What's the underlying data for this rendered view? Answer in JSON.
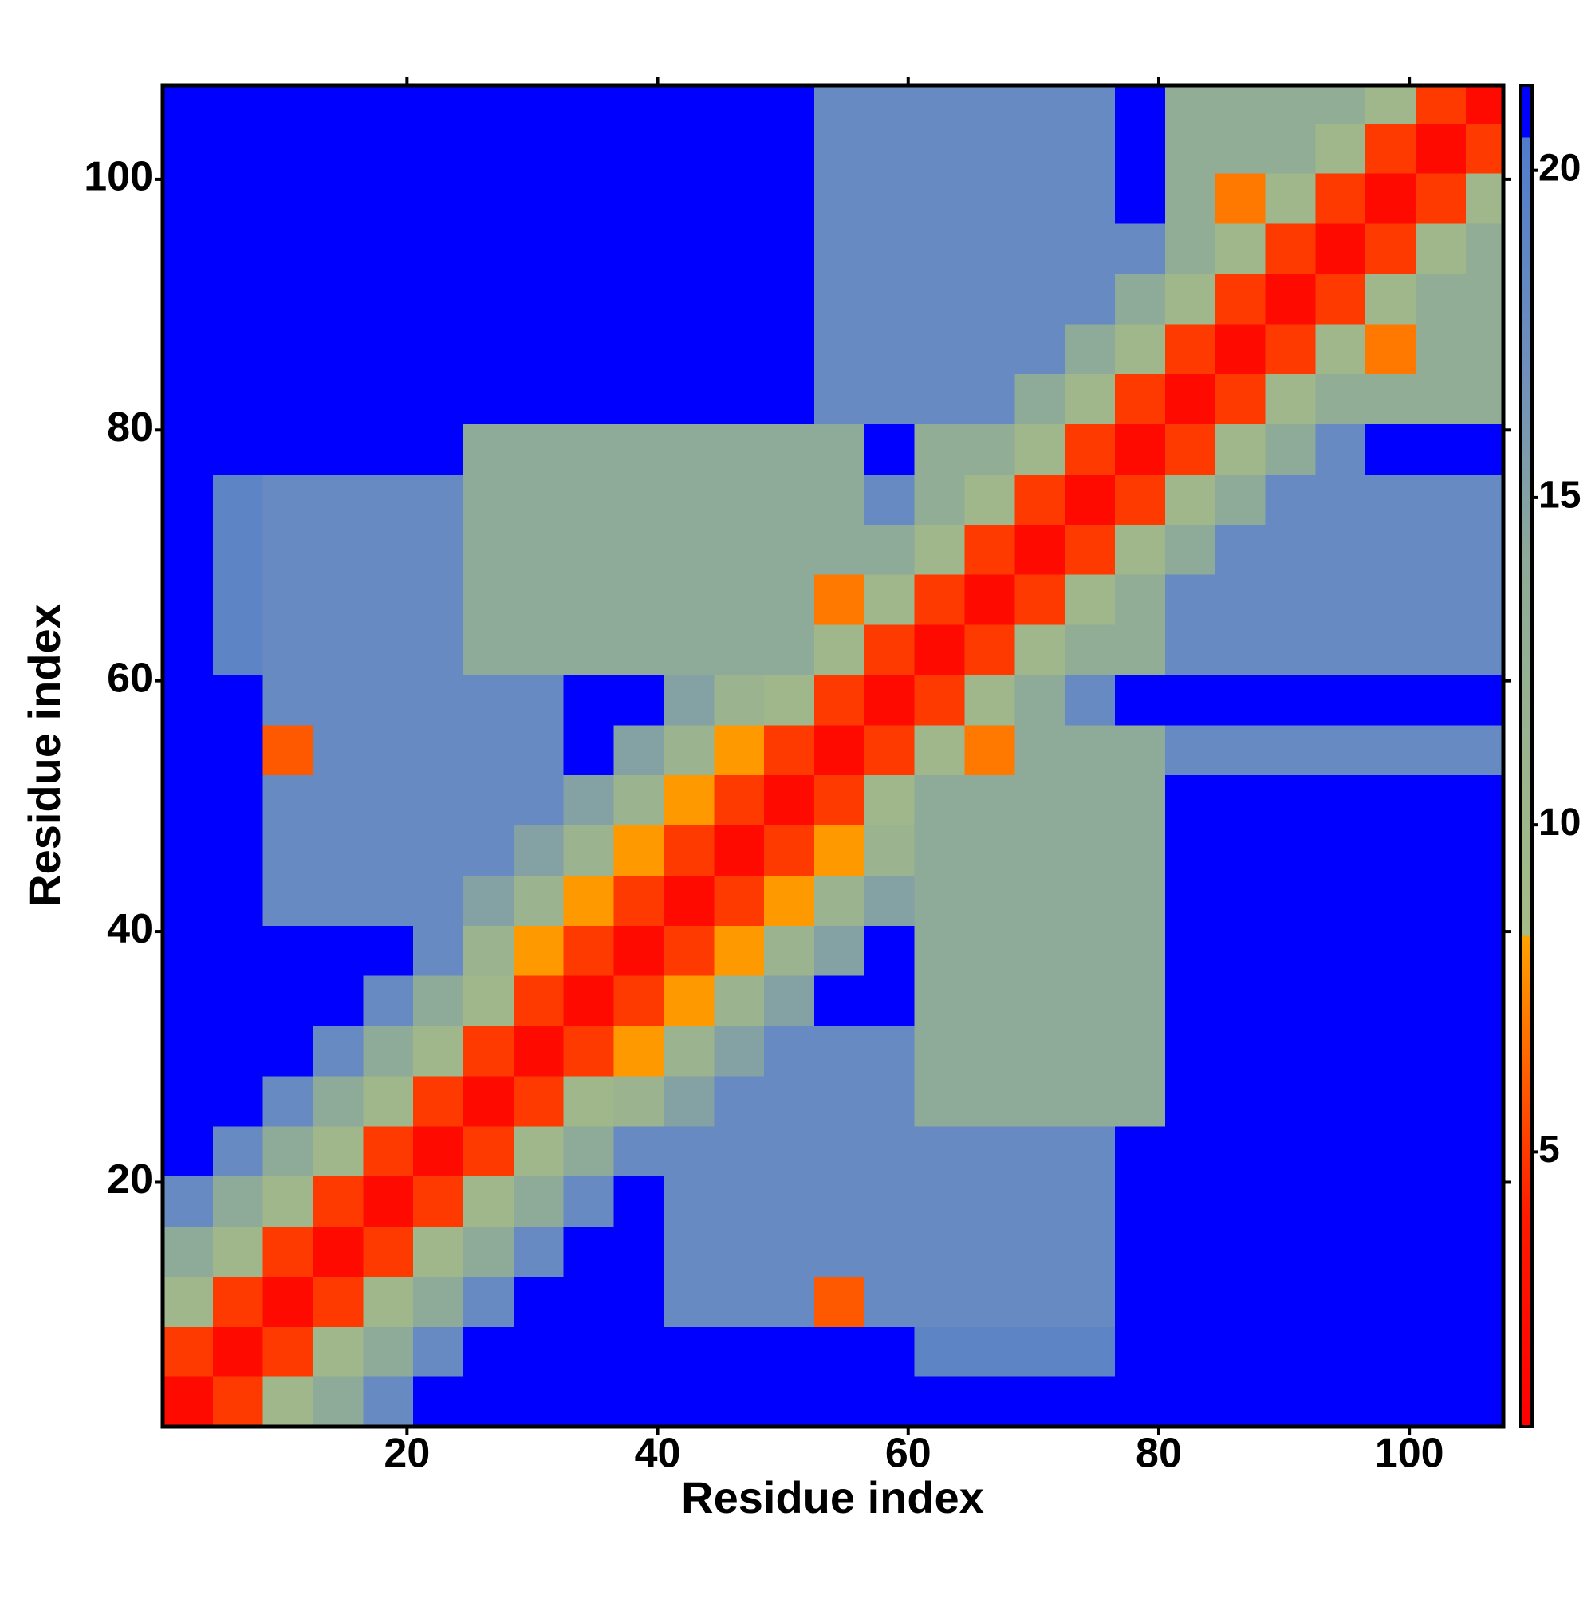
{
  "chart_data": {
    "type": "heatmap",
    "xlabel": "Residue index",
    "ylabel": "Residue index",
    "xlim": [
      0.5,
      107.5
    ],
    "ylim": [
      0.5,
      107.5
    ],
    "xticks": [
      20,
      40,
      60,
      80,
      100
    ],
    "yticks": [
      20,
      40,
      60,
      80,
      100
    ],
    "xbins": [
      0.5,
      4.5,
      8.5,
      12.5,
      16.5,
      20.5,
      24.5,
      28.5,
      32.5,
      36.5,
      40.5,
      44.5,
      48.5,
      52.5,
      56.5,
      60.5,
      64.5,
      68.5,
      72.5,
      76.5,
      80.5,
      84.5,
      88.5,
      92.5,
      96.5,
      100.5,
      104.5,
      107.5
    ],
    "ybins": [
      0.5,
      4.5,
      8.5,
      12.5,
      16.5,
      20.5,
      24.5,
      28.5,
      32.5,
      36.5,
      40.5,
      44.5,
      48.5,
      52.5,
      56.5,
      60.5,
      64.5,
      68.5,
      72.5,
      76.5,
      80.5,
      84.5,
      88.5,
      92.5,
      96.5,
      100.5,
      104.5,
      107.5
    ],
    "z": [
      [
        2,
        5,
        10,
        14,
        18,
        21,
        21,
        21,
        21,
        21,
        21,
        21,
        21,
        21,
        21,
        21,
        21,
        21,
        21,
        21,
        21,
        21,
        21,
        21,
        21,
        21,
        21
      ],
      [
        5,
        2,
        5,
        10,
        14,
        18,
        21,
        21,
        21,
        21,
        21,
        21,
        21,
        21,
        21,
        19,
        19,
        19,
        19,
        21,
        21,
        21,
        21,
        21,
        21,
        21,
        21
      ],
      [
        10,
        5,
        2,
        5,
        10,
        14,
        18,
        21,
        21,
        21,
        18,
        18,
        18,
        6,
        18,
        18,
        18,
        18,
        18,
        21,
        21,
        21,
        21,
        21,
        21,
        21,
        21
      ],
      [
        14,
        10,
        5,
        2,
        5,
        10,
        14,
        18,
        21,
        21,
        18,
        18,
        18,
        18,
        18,
        18,
        18,
        18,
        18,
        21,
        21,
        21,
        21,
        21,
        21,
        21,
        21
      ],
      [
        18,
        14,
        10,
        5,
        2,
        5,
        10,
        14,
        18,
        21,
        18,
        18,
        18,
        18,
        18,
        18,
        18,
        18,
        18,
        21,
        21,
        21,
        21,
        21,
        21,
        21,
        21
      ],
      [
        21,
        18,
        14,
        10,
        5,
        2,
        5,
        10,
        14,
        18,
        18,
        18,
        18,
        18,
        18,
        18,
        18,
        18,
        18,
        21,
        21,
        21,
        21,
        21,
        21,
        21,
        21
      ],
      [
        21,
        21,
        18,
        14,
        10,
        5,
        2,
        5,
        10,
        11,
        15,
        18,
        18,
        18,
        18,
        14,
        14,
        14,
        14,
        14,
        21,
        21,
        21,
        21,
        21,
        21,
        21
      ],
      [
        21,
        21,
        21,
        18,
        14,
        10,
        5,
        2,
        5,
        8,
        11,
        15,
        18,
        18,
        18,
        14,
        14,
        14,
        14,
        14,
        21,
        21,
        21,
        21,
        21,
        21,
        21
      ],
      [
        21,
        21,
        21,
        21,
        18,
        14,
        10,
        5,
        2,
        5,
        8,
        11,
        15,
        21,
        21,
        14,
        14,
        14,
        14,
        14,
        21,
        21,
        21,
        21,
        21,
        21,
        21
      ],
      [
        21,
        21,
        21,
        21,
        21,
        18,
        11,
        8,
        5,
        2,
        5,
        8,
        11,
        15,
        21,
        14,
        14,
        14,
        14,
        14,
        21,
        21,
        21,
        21,
        21,
        21,
        21
      ],
      [
        21,
        21,
        18,
        18,
        18,
        18,
        15,
        11,
        8,
        5,
        2,
        5,
        8,
        11,
        15,
        14,
        14,
        14,
        14,
        14,
        21,
        21,
        21,
        21,
        21,
        21,
        21
      ],
      [
        21,
        21,
        18,
        18,
        18,
        18,
        18,
        15,
        11,
        8,
        5,
        2,
        5,
        8,
        11,
        14,
        14,
        14,
        14,
        14,
        21,
        21,
        21,
        21,
        21,
        21,
        21
      ],
      [
        21,
        21,
        18,
        18,
        18,
        18,
        18,
        18,
        15,
        11,
        8,
        5,
        2,
        5,
        10,
        14,
        14,
        14,
        14,
        14,
        21,
        21,
        21,
        21,
        21,
        21,
        21
      ],
      [
        21,
        21,
        6,
        18,
        18,
        18,
        18,
        18,
        21,
        15,
        11,
        8,
        5,
        2,
        5,
        10,
        7,
        14,
        14,
        14,
        18,
        18,
        18,
        18,
        18,
        18,
        18
      ],
      [
        21,
        21,
        18,
        18,
        18,
        18,
        18,
        18,
        21,
        21,
        15,
        11,
        10,
        5,
        2,
        5,
        10,
        14,
        18,
        21,
        21,
        21,
        21,
        21,
        21,
        21,
        21
      ],
      [
        21,
        19,
        18,
        18,
        18,
        18,
        14,
        14,
        14,
        14,
        14,
        14,
        14,
        10,
        5,
        2,
        5,
        10,
        13,
        13,
        18,
        18,
        18,
        18,
        18,
        18,
        18
      ],
      [
        21,
        19,
        18,
        18,
        18,
        18,
        14,
        14,
        14,
        14,
        14,
        14,
        14,
        7,
        10,
        5,
        2,
        5,
        10,
        13,
        18,
        18,
        18,
        18,
        18,
        18,
        18
      ],
      [
        21,
        19,
        18,
        18,
        18,
        18,
        14,
        14,
        14,
        14,
        14,
        14,
        14,
        14,
        14,
        10,
        5,
        2,
        5,
        10,
        14,
        18,
        18,
        18,
        18,
        18,
        18
      ],
      [
        21,
        19,
        18,
        18,
        18,
        18,
        14,
        14,
        14,
        14,
        14,
        14,
        14,
        14,
        18,
        13,
        10,
        5,
        2,
        5,
        10,
        14,
        18,
        18,
        18,
        18,
        18
      ],
      [
        21,
        21,
        21,
        21,
        21,
        21,
        14,
        14,
        14,
        14,
        14,
        14,
        14,
        14,
        21,
        13,
        13,
        10,
        5,
        2,
        5,
        10,
        14,
        18,
        21,
        21,
        21
      ],
      [
        21,
        21,
        21,
        21,
        21,
        21,
        21,
        21,
        21,
        21,
        21,
        21,
        21,
        18,
        18,
        18,
        18,
        14,
        10,
        5,
        2,
        5,
        10,
        13,
        13,
        13,
        13
      ],
      [
        21,
        21,
        21,
        21,
        21,
        21,
        21,
        21,
        21,
        21,
        21,
        21,
        21,
        18,
        18,
        18,
        18,
        18,
        14,
        10,
        5,
        2,
        5,
        10,
        7,
        13,
        13
      ],
      [
        21,
        21,
        21,
        21,
        21,
        21,
        21,
        21,
        21,
        21,
        21,
        21,
        21,
        18,
        18,
        18,
        18,
        18,
        18,
        14,
        10,
        5,
        2,
        5,
        10,
        13,
        13
      ],
      [
        21,
        21,
        21,
        21,
        21,
        21,
        21,
        21,
        21,
        21,
        21,
        21,
        21,
        18,
        18,
        18,
        18,
        18,
        18,
        18,
        13,
        10,
        5,
        2,
        5,
        10,
        13
      ],
      [
        21,
        21,
        21,
        21,
        21,
        21,
        21,
        21,
        21,
        21,
        21,
        21,
        21,
        18,
        18,
        18,
        18,
        18,
        18,
        21,
        13,
        7,
        10,
        5,
        2,
        5,
        10
      ],
      [
        21,
        21,
        21,
        21,
        21,
        21,
        21,
        21,
        21,
        21,
        21,
        21,
        21,
        18,
        18,
        18,
        18,
        18,
        18,
        21,
        13,
        13,
        13,
        10,
        5,
        2,
        5
      ],
      [
        21,
        21,
        21,
        21,
        21,
        21,
        21,
        21,
        21,
        21,
        21,
        21,
        21,
        18,
        18,
        18,
        18,
        18,
        18,
        21,
        13,
        13,
        13,
        13,
        10,
        5,
        2
      ]
    ],
    "colorscale": [
      {
        "value": 0.8,
        "color": "#ff0000"
      },
      {
        "value": 4,
        "color": "#ff1a00"
      },
      {
        "value": 8.3,
        "color": "#ffa200"
      },
      {
        "value": 8.3,
        "color": "#a6bc86"
      },
      {
        "value": 14,
        "color": "#8eaa98"
      },
      {
        "value": 17,
        "color": "#6f8fbc"
      },
      {
        "value": 20.5,
        "color": "#4f7ccc"
      },
      {
        "value": 20.5,
        "color": "#0000ff"
      },
      {
        "value": 21.3,
        "color": "#0000ff"
      }
    ],
    "cblim": [
      0.8,
      21.3
    ],
    "cbticks": [
      5,
      10,
      15,
      20
    ]
  }
}
